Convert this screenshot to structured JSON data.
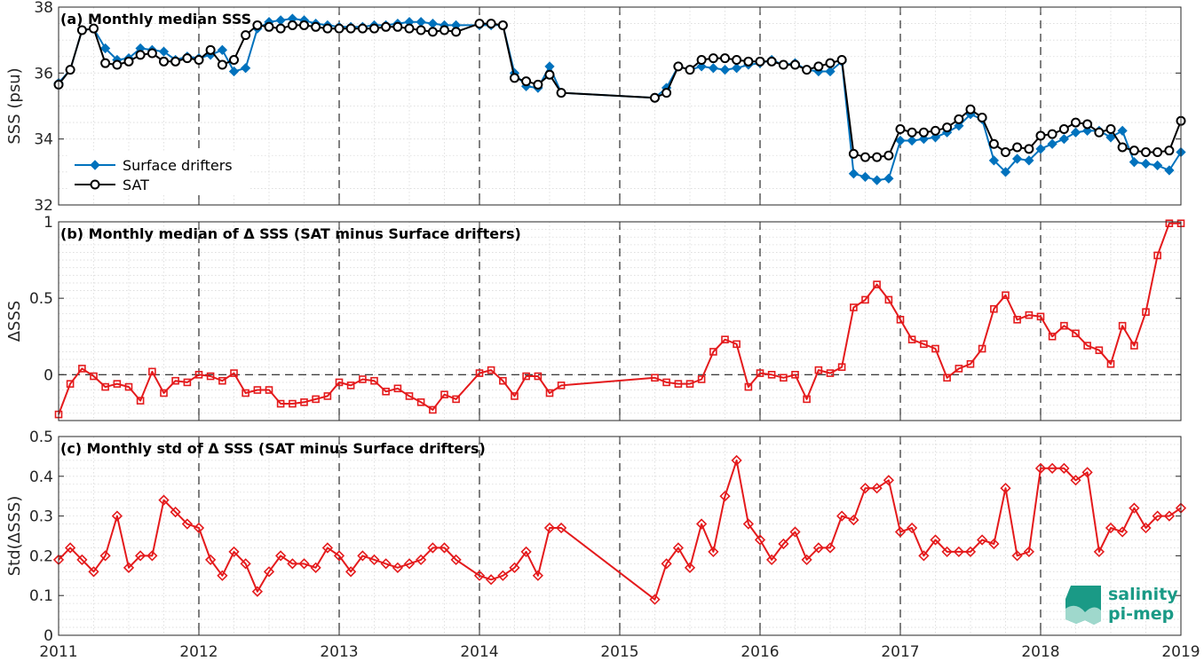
{
  "chart_data": [
    {
      "type": "line",
      "title": "(a) Monthly median SSS",
      "ylabel": "SSS (psu)",
      "xlim": [
        2011,
        2019
      ],
      "ylim": [
        32,
        38
      ],
      "yticks": [
        "32",
        "34",
        "36",
        "38"
      ],
      "xticks": [
        "2011",
        "2012",
        "2013",
        "2014",
        "2015",
        "2016",
        "2017",
        "2018",
        "2019"
      ],
      "grid": true,
      "legend": "left",
      "series": [
        {
          "name": "Surface drifters",
          "color": "#0072bd",
          "marker": "diamond",
          "x": [
            2011.0,
            2011.083,
            2011.167,
            2011.25,
            2011.333,
            2011.417,
            2011.5,
            2011.583,
            2011.667,
            2011.75,
            2011.833,
            2011.917,
            2012.0,
            2012.083,
            2012.167,
            2012.25,
            2012.333,
            2012.417,
            2012.5,
            2012.583,
            2012.667,
            2012.75,
            2012.833,
            2012.917,
            2013.0,
            2013.083,
            2013.167,
            2013.25,
            2013.333,
            2013.417,
            2013.5,
            2013.583,
            2013.667,
            2013.75,
            2013.833,
            2014.0,
            2014.083,
            2014.167,
            2014.25,
            2014.333,
            2014.417,
            2014.5,
            2014.583,
            2015.25,
            2015.333,
            2015.417,
            2015.5,
            2015.583,
            2015.667,
            2015.75,
            2015.833,
            2015.917,
            2016.0,
            2016.083,
            2016.167,
            2016.25,
            2016.333,
            2016.417,
            2016.5,
            2016.583,
            2016.667,
            2016.75,
            2016.833,
            2016.917,
            2017.0,
            2017.083,
            2017.167,
            2017.25,
            2017.333,
            2017.417,
            2017.5,
            2017.583,
            2017.667,
            2017.75,
            2017.833,
            2017.917,
            2018.0,
            2018.083,
            2018.167,
            2018.25,
            2018.333,
            2018.417,
            2018.5,
            2018.583,
            2018.667,
            2018.75,
            2018.833,
            2018.917,
            2019.0
          ],
          "values": [
            35.7,
            36.1,
            37.3,
            37.35,
            36.75,
            36.4,
            36.45,
            36.75,
            36.7,
            36.65,
            36.4,
            36.5,
            36.45,
            36.55,
            36.7,
            36.05,
            36.15,
            37.35,
            37.55,
            37.6,
            37.65,
            37.6,
            37.5,
            37.45,
            37.4,
            37.4,
            37.4,
            37.45,
            37.45,
            37.5,
            37.55,
            37.55,
            37.5,
            37.45,
            37.45,
            37.45,
            37.45,
            37.45,
            36.0,
            35.6,
            35.55,
            36.2,
            35.4,
            35.25,
            35.55,
            36.2,
            36.1,
            36.2,
            36.15,
            36.1,
            36.15,
            36.25,
            36.3,
            36.4,
            36.25,
            36.3,
            36.1,
            36.05,
            36.05,
            36.35,
            32.95,
            32.85,
            32.75,
            32.8,
            33.95,
            33.95,
            34.0,
            34.05,
            34.2,
            34.4,
            34.75,
            34.6,
            33.35,
            33.0,
            33.4,
            33.35,
            33.7,
            33.85,
            34.0,
            34.2,
            34.25,
            34.25,
            34.05,
            34.25,
            33.3,
            33.25,
            33.2,
            33.05,
            33.6
          ]
        },
        {
          "name": "SAT",
          "color": "#000000",
          "marker": "circle",
          "x": [
            2011.0,
            2011.083,
            2011.167,
            2011.25,
            2011.333,
            2011.417,
            2011.5,
            2011.583,
            2011.667,
            2011.75,
            2011.833,
            2011.917,
            2012.0,
            2012.083,
            2012.167,
            2012.25,
            2012.333,
            2012.417,
            2012.5,
            2012.583,
            2012.667,
            2012.75,
            2012.833,
            2012.917,
            2013.0,
            2013.083,
            2013.167,
            2013.25,
            2013.333,
            2013.417,
            2013.5,
            2013.583,
            2013.667,
            2013.75,
            2013.833,
            2014.0,
            2014.083,
            2014.167,
            2014.25,
            2014.333,
            2014.417,
            2014.5,
            2014.583,
            2015.25,
            2015.333,
            2015.417,
            2015.5,
            2015.583,
            2015.667,
            2015.75,
            2015.833,
            2015.917,
            2016.0,
            2016.083,
            2016.167,
            2016.25,
            2016.333,
            2016.417,
            2016.5,
            2016.583,
            2016.667,
            2016.75,
            2016.833,
            2016.917,
            2017.0,
            2017.083,
            2017.167,
            2017.25,
            2017.333,
            2017.417,
            2017.5,
            2017.583,
            2017.667,
            2017.75,
            2017.833,
            2017.917,
            2018.0,
            2018.083,
            2018.167,
            2018.25,
            2018.333,
            2018.417,
            2018.5,
            2018.583,
            2018.667,
            2018.75,
            2018.833,
            2018.917,
            2019.0
          ],
          "values": [
            35.65,
            36.1,
            37.3,
            37.35,
            36.3,
            36.25,
            36.35,
            36.55,
            36.6,
            36.35,
            36.35,
            36.45,
            36.4,
            36.7,
            36.25,
            36.4,
            37.15,
            37.45,
            37.4,
            37.35,
            37.45,
            37.45,
            37.4,
            37.35,
            37.35,
            37.35,
            37.35,
            37.35,
            37.4,
            37.4,
            37.35,
            37.3,
            37.25,
            37.3,
            37.25,
            37.5,
            37.5,
            37.45,
            35.85,
            35.75,
            35.65,
            35.95,
            35.4,
            35.25,
            35.4,
            36.2,
            36.1,
            36.4,
            36.45,
            36.45,
            36.4,
            36.35,
            36.35,
            36.35,
            36.25,
            36.25,
            36.1,
            36.2,
            36.3,
            36.4,
            33.55,
            33.45,
            33.45,
            33.5,
            34.3,
            34.2,
            34.2,
            34.25,
            34.35,
            34.6,
            34.9,
            34.65,
            33.85,
            33.6,
            33.75,
            33.7,
            34.1,
            34.15,
            34.3,
            34.5,
            34.45,
            34.2,
            34.3,
            33.75,
            33.65,
            33.6,
            33.6,
            33.65,
            34.55
          ]
        }
      ]
    },
    {
      "type": "line",
      "title": "(b) Monthly median of Δ SSS (SAT minus Surface drifters)",
      "ylabel": "ΔSSS",
      "xlim": [
        2011,
        2019
      ],
      "ylim": [
        -0.3,
        1
      ],
      "yticks": [
        "0",
        "0.5",
        "1"
      ],
      "grid": true,
      "reference_line": 0,
      "series": [
        {
          "name": "",
          "color": "#e41a1c",
          "marker": "square",
          "x": [
            2011.0,
            2011.083,
            2011.167,
            2011.25,
            2011.333,
            2011.417,
            2011.5,
            2011.583,
            2011.667,
            2011.75,
            2011.833,
            2011.917,
            2012.0,
            2012.083,
            2012.167,
            2012.25,
            2012.333,
            2012.417,
            2012.5,
            2012.583,
            2012.667,
            2012.75,
            2012.833,
            2012.917,
            2013.0,
            2013.083,
            2013.167,
            2013.25,
            2013.333,
            2013.417,
            2013.5,
            2013.583,
            2013.667,
            2013.75,
            2013.833,
            2014.0,
            2014.083,
            2014.167,
            2014.25,
            2014.333,
            2014.417,
            2014.5,
            2014.583,
            2015.25,
            2015.333,
            2015.417,
            2015.5,
            2015.583,
            2015.667,
            2015.75,
            2015.833,
            2015.917,
            2016.0,
            2016.083,
            2016.167,
            2016.25,
            2016.333,
            2016.417,
            2016.5,
            2016.583,
            2016.667,
            2016.75,
            2016.833,
            2016.917,
            2017.0,
            2017.083,
            2017.167,
            2017.25,
            2017.333,
            2017.417,
            2017.5,
            2017.583,
            2017.667,
            2017.75,
            2017.833,
            2017.917,
            2018.0,
            2018.083,
            2018.167,
            2018.25,
            2018.333,
            2018.417,
            2018.5,
            2018.583,
            2018.667,
            2018.75,
            2018.833,
            2018.917,
            2019.0
          ],
          "values": [
            -0.26,
            -0.06,
            0.04,
            -0.01,
            -0.08,
            -0.06,
            -0.08,
            -0.17,
            0.02,
            -0.12,
            -0.04,
            -0.05,
            0.0,
            -0.01,
            -0.04,
            0.01,
            -0.12,
            -0.1,
            -0.1,
            -0.19,
            -0.19,
            -0.18,
            -0.16,
            -0.14,
            -0.05,
            -0.07,
            -0.03,
            -0.04,
            -0.11,
            -0.09,
            -0.14,
            -0.18,
            -0.23,
            -0.13,
            -0.16,
            0.01,
            0.03,
            -0.04,
            -0.14,
            -0.01,
            -0.01,
            -0.12,
            -0.07,
            -0.02,
            -0.05,
            -0.06,
            -0.06,
            -0.03,
            0.15,
            0.23,
            0.2,
            -0.08,
            0.01,
            0.0,
            -0.02,
            0.0,
            -0.16,
            0.03,
            0.01,
            0.05,
            0.44,
            0.49,
            0.59,
            0.49,
            0.36,
            0.23,
            0.2,
            0.17,
            -0.02,
            0.04,
            0.07,
            0.17,
            0.43,
            0.52,
            0.36,
            0.39,
            0.38,
            0.25,
            0.32,
            0.27,
            0.19,
            0.16,
            0.07,
            0.32,
            0.19,
            0.41,
            0.78,
            0.99,
            0.99
          ]
        }
      ]
    },
    {
      "type": "line",
      "title": "(c) Monthly std of Δ SSS (SAT minus Surface drifters)",
      "ylabel": "Std(ΔSSS)",
      "xlim": [
        2011,
        2019
      ],
      "ylim": [
        0,
        0.5
      ],
      "yticks": [
        "0",
        "0.1",
        "0.2",
        "0.3",
        "0.4",
        "0.5"
      ],
      "grid": true,
      "series": [
        {
          "name": "",
          "color": "#e41a1c",
          "marker": "diamond",
          "x": [
            2011.0,
            2011.083,
            2011.167,
            2011.25,
            2011.333,
            2011.417,
            2011.5,
            2011.583,
            2011.667,
            2011.75,
            2011.833,
            2011.917,
            2012.0,
            2012.083,
            2012.167,
            2012.25,
            2012.333,
            2012.417,
            2012.5,
            2012.583,
            2012.667,
            2012.75,
            2012.833,
            2012.917,
            2013.0,
            2013.083,
            2013.167,
            2013.25,
            2013.333,
            2013.417,
            2013.5,
            2013.583,
            2013.667,
            2013.75,
            2013.833,
            2014.0,
            2014.083,
            2014.167,
            2014.25,
            2014.333,
            2014.417,
            2014.5,
            2014.583,
            2015.25,
            2015.333,
            2015.417,
            2015.5,
            2015.583,
            2015.667,
            2015.75,
            2015.833,
            2015.917,
            2016.0,
            2016.083,
            2016.167,
            2016.25,
            2016.333,
            2016.417,
            2016.5,
            2016.583,
            2016.667,
            2016.75,
            2016.833,
            2016.917,
            2017.0,
            2017.083,
            2017.167,
            2017.25,
            2017.333,
            2017.417,
            2017.5,
            2017.583,
            2017.667,
            2017.75,
            2017.833,
            2017.917,
            2018.0,
            2018.083,
            2018.167,
            2018.25,
            2018.333,
            2018.417,
            2018.5,
            2018.583,
            2018.667,
            2018.75,
            2018.833,
            2018.917,
            2019.0
          ],
          "values": [
            0.19,
            0.22,
            0.19,
            0.16,
            0.2,
            0.3,
            0.17,
            0.2,
            0.2,
            0.34,
            0.31,
            0.28,
            0.27,
            0.19,
            0.15,
            0.21,
            0.18,
            0.11,
            0.16,
            0.2,
            0.18,
            0.18,
            0.17,
            0.22,
            0.2,
            0.16,
            0.2,
            0.19,
            0.18,
            0.17,
            0.18,
            0.19,
            0.22,
            0.22,
            0.19,
            0.15,
            0.14,
            0.15,
            0.17,
            0.21,
            0.15,
            0.27,
            0.27,
            0.09,
            0.18,
            0.22,
            0.17,
            0.28,
            0.21,
            0.35,
            0.44,
            0.28,
            0.24,
            0.19,
            0.23,
            0.26,
            0.19,
            0.22,
            0.22,
            0.3,
            0.29,
            0.37,
            0.37,
            0.39,
            0.26,
            0.27,
            0.2,
            0.24,
            0.21,
            0.21,
            0.21,
            0.24,
            0.23,
            0.37,
            0.2,
            0.21,
            0.42,
            0.42,
            0.42,
            0.39,
            0.41,
            0.21,
            0.27,
            0.26,
            0.32,
            0.27,
            0.3,
            0.3,
            0.32
          ]
        }
      ]
    }
  ],
  "logo": {
    "line1": "salinity",
    "line2": "pi-mep",
    "color": "#1a9a86"
  }
}
